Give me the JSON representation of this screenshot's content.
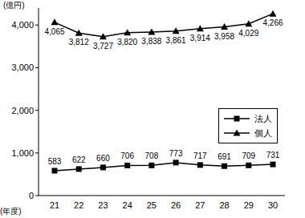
{
  "chart_data": {
    "type": "line",
    "y_label": "(億円)",
    "x_label": "(年度)",
    "categories": [
      "21",
      "22",
      "23",
      "24",
      "25",
      "26",
      "27",
      "28",
      "29",
      "30"
    ],
    "series": [
      {
        "name": "法人",
        "color": "#000000",
        "marker": "square",
        "values": [
          583,
          622,
          660,
          706,
          708,
          773,
          717,
          691,
          709,
          731
        ]
      },
      {
        "name": "個人",
        "color": "#000000",
        "marker": "triangle",
        "values": [
          4065,
          3812,
          3727,
          3820,
          3838,
          3861,
          3914,
          3958,
          4029,
          4266
        ],
        "value_labels": [
          "4,065",
          "3,812",
          "3,727",
          "3,820",
          "3,838",
          "3,861",
          "3,914",
          "3,958",
          "4,029",
          "4,266"
        ]
      }
    ],
    "ylim": [
      0,
      4400
    ],
    "yticks": [
      0,
      {
        "value": 1000,
        "label": "1,000"
      },
      {
        "value": 2000,
        "label": "2,000"
      },
      {
        "value": 3000,
        "label": "3,000"
      },
      {
        "value": 4000,
        "label": "4,000"
      }
    ],
    "data_labels": true,
    "legend": "right",
    "grid": false
  }
}
